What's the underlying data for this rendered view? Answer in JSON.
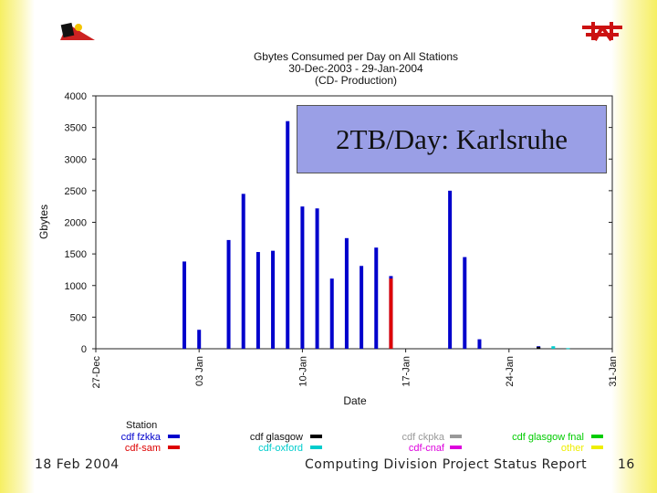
{
  "slide": {
    "footer_date": "18 Feb 2004",
    "footer_title": "Computing Division Project Status Report",
    "page_number": "16",
    "callout_text": "2TB/Day: Karlsruhe"
  },
  "chart_data": {
    "type": "bar",
    "title": "Gbytes Consumed per Day on All Stations",
    "subtitle_dates": "30-Dec-2003 - 29-Jan-2004",
    "subtitle_production": "(CD- Production)",
    "xlabel": "Date",
    "ylabel": "Gbytes",
    "ylim": [
      0,
      4000
    ],
    "yticks": [
      0,
      500,
      1000,
      1500,
      2000,
      2500,
      3000,
      3500,
      4000
    ],
    "xlim_days": [
      0,
      35
    ],
    "xticks": [
      {
        "day": 0,
        "label": "27-Dec"
      },
      {
        "day": 7,
        "label": "03 Jan"
      },
      {
        "day": 14,
        "label": "10-Jan"
      },
      {
        "day": 21,
        "label": "17-Jan"
      },
      {
        "day": 28,
        "label": "24-Jan"
      },
      {
        "day": 35,
        "label": "31-Jan"
      }
    ],
    "legend_title": "Station",
    "series": [
      {
        "name": "cdf fzkka",
        "color": "#0000cc",
        "points": [
          {
            "day": 6,
            "value": 1380
          },
          {
            "day": 7,
            "value": 300
          },
          {
            "day": 9,
            "value": 1720
          },
          {
            "day": 10,
            "value": 2450
          },
          {
            "day": 11,
            "value": 1530
          },
          {
            "day": 12,
            "value": 1550
          },
          {
            "day": 13,
            "value": 3600
          },
          {
            "day": 14,
            "value": 2250
          },
          {
            "day": 15,
            "value": 2220
          },
          {
            "day": 16,
            "value": 1110
          },
          {
            "day": 17,
            "value": 1750
          },
          {
            "day": 18,
            "value": 1310
          },
          {
            "day": 19,
            "value": 1600
          },
          {
            "day": 20,
            "value": 1150
          },
          {
            "day": 24,
            "value": 2500
          },
          {
            "day": 25,
            "value": 1450
          },
          {
            "day": 26,
            "value": 150
          },
          {
            "day": 30,
            "value": 40
          }
        ]
      },
      {
        "name": "cdf-sam",
        "color": "#dd0000",
        "points": [
          {
            "day": 20,
            "value": 1110
          }
        ]
      },
      {
        "name": "cdf glasgow",
        "color": "#000000",
        "points": [
          {
            "day": 30,
            "value": 30
          }
        ]
      },
      {
        "name": "cdf-oxford",
        "color": "#00cccc",
        "points": [
          {
            "day": 31,
            "value": 40
          },
          {
            "day": 32,
            "value": 10
          }
        ]
      },
      {
        "name": "cdf ckpka",
        "color": "#999999",
        "points": []
      },
      {
        "name": "cdf-cnaf",
        "color": "#dd00dd",
        "points": []
      },
      {
        "name": "cdf glasgow fnal",
        "color": "#00cc00",
        "points": []
      },
      {
        "name": "other",
        "color": "#eeee00",
        "points": []
      }
    ]
  }
}
